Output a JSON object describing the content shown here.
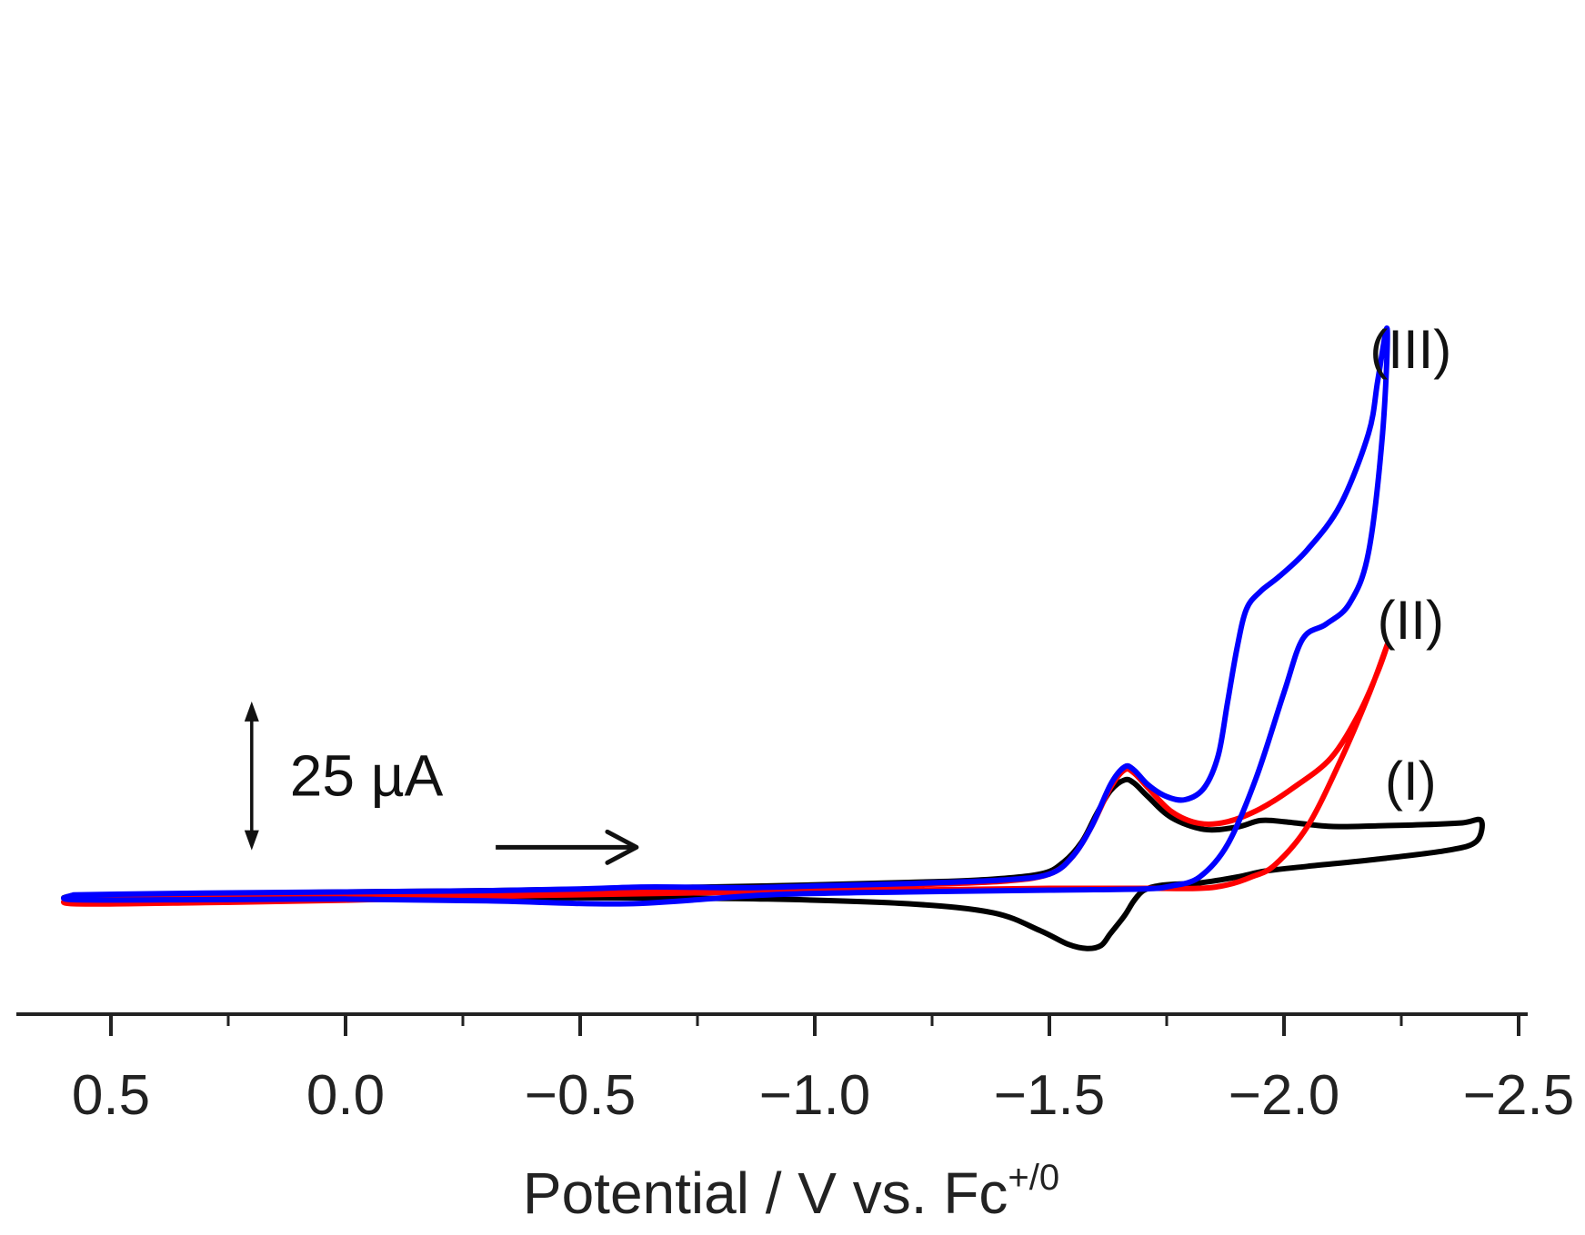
{
  "chart_data": {
    "type": "line",
    "title": "",
    "xlabel": "Potential / V vs. Fc",
    "xlabel_superscript": "+/0",
    "ylabel": "",
    "x_direction": "reversed",
    "xlim": [
      0.7,
      -2.5
    ],
    "x_ticks": [
      0.5,
      0.0,
      -0.5,
      -1.0,
      -1.5,
      -2.0,
      -2.5
    ],
    "x_tick_labels": [
      "0.5",
      "0.0",
      "−0.5",
      "−1.0",
      "−1.5",
      "−2.0",
      "−2.5"
    ],
    "current_unit": "µA",
    "ylim": [
      -27,
      96
    ],
    "scale_bar": {
      "label": "25 µA",
      "value": 25,
      "bottom_value": 8,
      "at_potential": 0.2
    },
    "scan_direction_arrow": {
      "from_potential": -0.32,
      "to_potential": -0.62,
      "at_current": 8.5
    },
    "series": [
      {
        "name": "(I)",
        "color": "#000000",
        "label_at": [
          -2.27,
          16.5
        ],
        "x": [
          0.58,
          0.4,
          0.2,
          0.0,
          -0.3,
          -0.6,
          -0.9,
          -1.2,
          -1.35,
          -1.48,
          -1.53,
          -1.57,
          -1.6,
          -1.63,
          -1.66,
          -1.68,
          -1.71,
          -1.76,
          -1.83,
          -1.9,
          -1.95,
          -2.0,
          -2.1,
          -2.2,
          -2.3,
          -2.38,
          -2.42,
          -2.41,
          -2.35,
          -2.2,
          -2.05,
          -1.96,
          -1.9,
          -1.82,
          -1.77,
          -1.73,
          -1.7,
          -1.68,
          -1.66,
          -1.63,
          -1.61,
          -1.58,
          -1.54,
          -1.48,
          -1.38,
          -1.2,
          -0.9,
          -0.6,
          -0.3,
          0.0,
          0.3,
          0.58,
          0.58
        ],
        "y": [
          0.4,
          0.6,
          0.8,
          1.0,
          1.2,
          1.6,
          2.0,
          2.6,
          3.0,
          4.0,
          6.0,
          9.5,
          14.0,
          18.0,
          19.8,
          19.3,
          17.0,
          13.5,
          11.5,
          11.9,
          13.0,
          12.8,
          12.0,
          12.1,
          12.3,
          12.6,
          13.0,
          9.5,
          8.0,
          6.5,
          5.3,
          4.5,
          3.5,
          2.5,
          2.3,
          2.0,
          1.2,
          -0.5,
          -3.0,
          -6.0,
          -8.0,
          -8.5,
          -7.8,
          -5.5,
          -2.5,
          -1.0,
          -0.2,
          0.0,
          0.0,
          -0.2,
          -0.3,
          -0.2,
          0.4
        ]
      },
      {
        "name": "(II)",
        "color": "#ff0000",
        "label_at": [
          -2.27,
          43.5
        ],
        "x": [
          0.58,
          0.3,
          0.0,
          -0.4,
          -0.8,
          -1.2,
          -1.4,
          -1.5,
          -1.55,
          -1.59,
          -1.63,
          -1.66,
          -1.68,
          -1.71,
          -1.76,
          -1.82,
          -1.88,
          -1.95,
          -2.02,
          -2.1,
          -2.16,
          -2.2,
          -2.22,
          -2.18,
          -2.12,
          -2.05,
          -1.98,
          -1.93,
          -1.88,
          -1.82,
          -1.7,
          -1.5,
          -1.2,
          -0.8,
          -0.4,
          0.0,
          0.3,
          0.58,
          0.58
        ],
        "y": [
          0.0,
          0.3,
          0.6,
          1.0,
          1.6,
          2.2,
          2.8,
          4.0,
          7.0,
          12.0,
          18.5,
          21.5,
          21.0,
          18.5,
          14.5,
          12.5,
          12.8,
          15.0,
          18.5,
          23.5,
          31.0,
          38.0,
          42.5,
          34.0,
          23.0,
          12.0,
          5.5,
          3.5,
          2.2,
          1.6,
          1.6,
          1.6,
          1.3,
          0.9,
          0.4,
          -0.4,
          -0.8,
          -1.0,
          0.0
        ]
      },
      {
        "name": "(III)",
        "color": "#0000ff",
        "label_at": [
          -2.27,
          89.0
        ],
        "x": [
          0.58,
          0.3,
          0.0,
          -0.3,
          -0.5,
          -0.62,
          -0.72,
          -0.85,
          -1.0,
          -1.2,
          -1.4,
          -1.5,
          -1.55,
          -1.59,
          -1.63,
          -1.66,
          -1.68,
          -1.71,
          -1.75,
          -1.79,
          -1.83,
          -1.86,
          -1.88,
          -1.9,
          -1.92,
          -1.95,
          -1.99,
          -2.05,
          -2.12,
          -2.18,
          -2.2,
          -2.22,
          -2.21,
          -2.18,
          -2.14,
          -2.09,
          -2.04,
          -2.0,
          -1.94,
          -1.88,
          -1.82,
          -1.76,
          -1.7,
          -1.5,
          -1.2,
          -0.9,
          -0.6,
          -0.3,
          0.0,
          0.3,
          0.58,
          0.58
        ],
        "y": [
          0.5,
          0.8,
          1.0,
          1.2,
          1.5,
          1.8,
          1.8,
          1.7,
          2.0,
          2.4,
          3.0,
          4.0,
          7.0,
          12.0,
          19.0,
          22.0,
          21.5,
          19.0,
          17.0,
          16.5,
          18.5,
          24.0,
          33.0,
          42.0,
          48.5,
          51.5,
          54.0,
          58.5,
          66.0,
          78.0,
          87.0,
          95.5,
          78.0,
          58.0,
          49.5,
          46.0,
          43.5,
          34.5,
          20.0,
          9.0,
          3.5,
          2.0,
          1.5,
          1.3,
          1.0,
          0.5,
          -1.0,
          -0.5,
          -0.2,
          -0.3,
          -0.3,
          0.5
        ]
      }
    ]
  }
}
